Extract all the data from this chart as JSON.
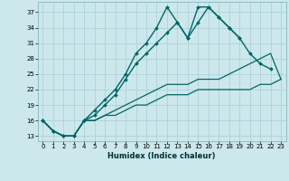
{
  "xlabel": "Humidex (Indice chaleur)",
  "bg_color": "#cce8ec",
  "grid_color": "#aaccd4",
  "line_color": "#006666",
  "x_values": [
    0,
    1,
    2,
    3,
    4,
    5,
    6,
    7,
    8,
    9,
    10,
    11,
    12,
    13,
    14,
    15,
    16,
    17,
    18,
    19,
    20,
    21,
    22,
    23
  ],
  "line1": [
    16,
    14,
    13,
    13,
    16,
    18,
    20,
    22,
    25,
    29,
    31,
    34,
    38,
    35,
    32,
    38,
    38,
    36,
    34,
    32,
    null,
    null,
    null,
    null
  ],
  "line2": [
    16,
    14,
    13,
    13,
    16,
    17,
    19,
    21,
    24,
    27,
    29,
    31,
    33,
    35,
    32,
    35,
    38,
    36,
    34,
    32,
    29,
    27,
    26,
    null
  ],
  "line3": [
    16,
    14,
    13,
    13,
    16,
    16,
    17,
    18,
    19,
    20,
    21,
    22,
    23,
    23,
    23,
    24,
    24,
    24,
    25,
    26,
    27,
    28,
    29,
    24
  ],
  "line4": [
    16,
    14,
    13,
    13,
    16,
    16,
    17,
    17,
    18,
    19,
    19,
    20,
    21,
    21,
    21,
    22,
    22,
    22,
    22,
    22,
    22,
    23,
    23,
    24
  ],
  "ylim": [
    12,
    39
  ],
  "xlim": [
    -0.5,
    23.5
  ],
  "yticks": [
    13,
    16,
    19,
    22,
    25,
    28,
    31,
    34,
    37
  ],
  "xticks": [
    0,
    1,
    2,
    3,
    4,
    5,
    6,
    7,
    8,
    9,
    10,
    11,
    12,
    13,
    14,
    15,
    16,
    17,
    18,
    19,
    20,
    21,
    22,
    23
  ]
}
